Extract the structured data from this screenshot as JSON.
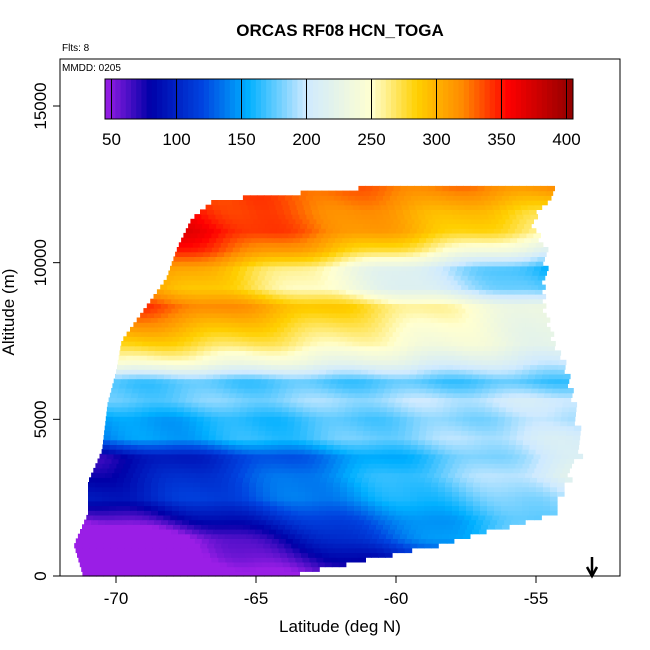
{
  "chart_data": {
    "type": "heatmap",
    "title": "ORCAS RF08 HCN_TOGA",
    "xlabel": "Latitude (deg N)",
    "ylabel": "Altitude (m)",
    "annotations": {
      "flights": "Flts: 8",
      "date": "MMDD: 0205"
    },
    "xlim": [
      -72,
      -52
    ],
    "ylim": [
      0,
      16500
    ],
    "x_ticks": [
      -70,
      -65,
      -60,
      -55
    ],
    "x_tick_labels": [
      "-70",
      "-65",
      "-60",
      "-55"
    ],
    "y_ticks": [
      0,
      5000,
      10000,
      15000
    ],
    "y_tick_labels": [
      "0",
      "5000",
      "10000",
      "15000"
    ],
    "colorbar": {
      "min": 45,
      "max": 405,
      "ticks": [
        50,
        100,
        150,
        200,
        250,
        300,
        350,
        400
      ],
      "tick_labels": [
        "50",
        "100",
        "150",
        "200",
        "250",
        "300",
        "350",
        "400"
      ],
      "colors": [
        {
          "v": 45,
          "c": "#9a1ee6"
        },
        {
          "v": 80,
          "c": "#0000a8"
        },
        {
          "v": 120,
          "c": "#0044e0"
        },
        {
          "v": 155,
          "c": "#00b0ff"
        },
        {
          "v": 200,
          "c": "#cfeaff"
        },
        {
          "v": 250,
          "c": "#ffffd0"
        },
        {
          "v": 285,
          "c": "#ffd000"
        },
        {
          "v": 320,
          "c": "#ff8a00"
        },
        {
          "v": 355,
          "c": "#ff0000"
        },
        {
          "v": 405,
          "c": "#900000"
        }
      ]
    },
    "coverage": [
      {
        "alt": 100,
        "lat_min": -71.2,
        "lat_max": -63.5
      },
      {
        "alt": 1000,
        "lat_min": -71.5,
        "lat_max": -58.5
      },
      {
        "alt": 2000,
        "lat_min": -71.0,
        "lat_max": -54.5
      },
      {
        "alt": 3000,
        "lat_min": -71.0,
        "lat_max": -54.0
      },
      {
        "alt": 4000,
        "lat_min": -70.5,
        "lat_max": -53.5
      },
      {
        "alt": 5500,
        "lat_min": -70.3,
        "lat_max": -53.8
      },
      {
        "alt": 6500,
        "lat_min": -70.0,
        "lat_max": -54.0
      },
      {
        "alt": 7500,
        "lat_min": -69.8,
        "lat_max": -54.5
      },
      {
        "alt": 8500,
        "lat_min": -69.0,
        "lat_max": -54.8
      },
      {
        "alt": 9500,
        "lat_min": -68.2,
        "lat_max": -54.8
      },
      {
        "alt": 10500,
        "lat_min": -67.8,
        "lat_max": -54.8
      },
      {
        "alt": 11400,
        "lat_min": -67.3,
        "lat_max": -55.3
      },
      {
        "alt": 12000,
        "lat_min": -66.5,
        "lat_max": -54.5
      },
      {
        "alt": 12400,
        "lat_min": -61.0,
        "lat_max": -54.5
      }
    ],
    "profile": [
      {
        "alt": 0,
        "value": 55,
        "slope": 6
      },
      {
        "alt": 600,
        "value": 80,
        "slope": 8
      },
      {
        "alt": 1200,
        "value": 105,
        "slope": 12
      },
      {
        "alt": 1800,
        "value": 120,
        "slope": 8
      },
      {
        "alt": 2500,
        "value": 145,
        "slope": 6
      },
      {
        "alt": 3200,
        "value": 150,
        "slope": 8
      },
      {
        "alt": 3800,
        "value": 140,
        "slope": 8
      },
      {
        "alt": 4400,
        "value": 175,
        "slope": 4
      },
      {
        "alt": 5000,
        "value": 170,
        "slope": 3
      },
      {
        "alt": 5600,
        "value": 190,
        "slope": 2
      },
      {
        "alt": 6200,
        "value": 170,
        "slope": 0
      },
      {
        "alt": 6800,
        "value": 225,
        "slope": -3
      },
      {
        "alt": 7400,
        "value": 255,
        "slope": -4
      },
      {
        "alt": 8000,
        "value": 270,
        "slope": -6
      },
      {
        "alt": 8600,
        "value": 285,
        "slope": -8
      },
      {
        "alt": 9200,
        "value": 240,
        "slope": -10
      },
      {
        "alt": 9800,
        "value": 240,
        "slope": -12
      },
      {
        "alt": 10400,
        "value": 290,
        "slope": -10
      },
      {
        "alt": 11000,
        "value": 320,
        "slope": -8
      },
      {
        "alt": 11600,
        "value": 320,
        "slope": -6
      },
      {
        "alt": 12400,
        "value": 330,
        "slope": -2
      }
    ],
    "arrow_latitude": -53
  }
}
